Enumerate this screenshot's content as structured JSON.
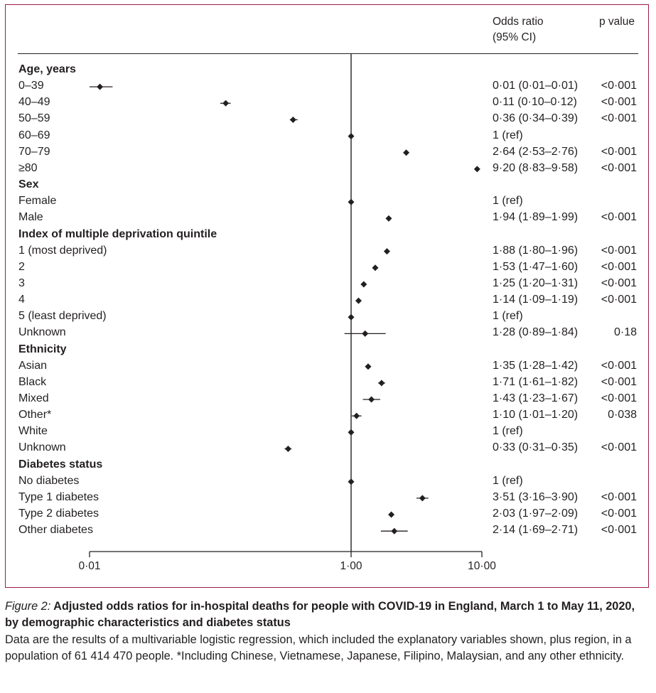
{
  "colors": {
    "frame": "#9b1c46",
    "ink": "#231f20",
    "background": "#ffffff"
  },
  "columns": {
    "odds_ratio_line1": "Odds ratio",
    "odds_ratio_line2": "(95% CI)",
    "p_value": "p value"
  },
  "axis_ticks": [
    {
      "value": 0.01,
      "label": "0·01"
    },
    {
      "value": 1,
      "label": "1·00"
    },
    {
      "value": 10,
      "label": "10·00"
    }
  ],
  "rows": [
    {
      "label": "Age, years",
      "heading": true
    },
    {
      "label": "0–39",
      "or": 0.012,
      "lo": 0.01,
      "hi": 0.015,
      "or_text": "0·01 (0·01–0·01)",
      "p": "<0·001"
    },
    {
      "label": "40–49",
      "or": 0.11,
      "lo": 0.1,
      "hi": 0.12,
      "or_text": "0·11 (0·10–0·12)",
      "p": "<0·001"
    },
    {
      "label": "50–59",
      "or": 0.36,
      "lo": 0.34,
      "hi": 0.39,
      "or_text": "0·36 (0·34–0·39)",
      "p": "<0·001"
    },
    {
      "label": "60–69",
      "or": 1,
      "ref": true,
      "or_text": "1 (ref)",
      "p": ""
    },
    {
      "label": "70–79",
      "or": 2.64,
      "lo": 2.53,
      "hi": 2.76,
      "or_text": "2·64 (2·53–2·76)",
      "p": "<0·001"
    },
    {
      "label": "≥80",
      "or": 9.2,
      "lo": 8.83,
      "hi": 9.58,
      "or_text": "9·20 (8·83–9·58)",
      "p": "<0·001"
    },
    {
      "label": "Sex",
      "heading": true
    },
    {
      "label": "Female",
      "or": 1,
      "ref": true,
      "or_text": "1 (ref)",
      "p": ""
    },
    {
      "label": "Male",
      "or": 1.94,
      "lo": 1.89,
      "hi": 1.99,
      "or_text": "1·94 (1·89–1·99)",
      "p": "<0·001"
    },
    {
      "label": "Index of multiple deprivation quintile",
      "heading": true
    },
    {
      "label": "1 (most deprived)",
      "or": 1.88,
      "lo": 1.8,
      "hi": 1.96,
      "or_text": "1·88 (1·80–1·96)",
      "p": "<0·001"
    },
    {
      "label": "2",
      "or": 1.53,
      "lo": 1.47,
      "hi": 1.6,
      "or_text": "1·53 (1·47–1·60)",
      "p": "<0·001"
    },
    {
      "label": "3",
      "or": 1.25,
      "lo": 1.2,
      "hi": 1.31,
      "or_text": "1·25 (1·20–1·31)",
      "p": "<0·001"
    },
    {
      "label": "4",
      "or": 1.14,
      "lo": 1.09,
      "hi": 1.19,
      "or_text": "1·14 (1·09–1·19)",
      "p": "<0·001"
    },
    {
      "label": "5 (least deprived)",
      "or": 1,
      "ref": true,
      "or_text": "1 (ref)",
      "p": ""
    },
    {
      "label": "Unknown",
      "or": 1.28,
      "lo": 0.89,
      "hi": 1.84,
      "or_text": "1·28 (0·89–1·84)",
      "p": "0·18"
    },
    {
      "label": "Ethnicity",
      "heading": true
    },
    {
      "label": "Asian",
      "or": 1.35,
      "lo": 1.28,
      "hi": 1.42,
      "or_text": "1·35 (1·28–1·42)",
      "p": "<0·001"
    },
    {
      "label": "Black",
      "or": 1.71,
      "lo": 1.61,
      "hi": 1.82,
      "or_text": "1·71 (1·61–1·82)",
      "p": "<0·001"
    },
    {
      "label": "Mixed",
      "or": 1.43,
      "lo": 1.23,
      "hi": 1.67,
      "or_text": "1·43 (1·23–1·67)",
      "p": "<0·001"
    },
    {
      "label": "Other*",
      "or": 1.1,
      "lo": 1.01,
      "hi": 1.2,
      "or_text": "1·10 (1·01–1·20)",
      "p": "0·038"
    },
    {
      "label": "White",
      "or": 1,
      "ref": true,
      "or_text": "1 (ref)",
      "p": ""
    },
    {
      "label": "Unknown",
      "or": 0.33,
      "lo": 0.31,
      "hi": 0.35,
      "or_text": "0·33 (0·31–0·35)",
      "p": "<0·001"
    },
    {
      "label": "Diabetes status",
      "heading": true
    },
    {
      "label": "No diabetes",
      "or": 1,
      "ref": true,
      "or_text": "1 (ref)",
      "p": ""
    },
    {
      "label": "Type 1 diabetes",
      "or": 3.51,
      "lo": 3.16,
      "hi": 3.9,
      "or_text": "3·51 (3·16–3·90)",
      "p": "<0·001"
    },
    {
      "label": "Type 2 diabetes",
      "or": 2.03,
      "lo": 1.97,
      "hi": 2.09,
      "or_text": "2·03 (1·97–2·09)",
      "p": "<0·001"
    },
    {
      "label": "Other diabetes",
      "or": 2.14,
      "lo": 1.69,
      "hi": 2.71,
      "or_text": "2·14 (1·69–2·71)",
      "p": "<0·001"
    }
  ],
  "caption": {
    "figure_label": "Figure 2:",
    "title": " Adjusted odds ratios for in-hospital deaths for people with COVID-19 in England, March 1 to May 11, 2020, by demographic characteristics and diabetes status",
    "body": "Data are the results of a multivariable logistic regression, which included the explanatory variables shown, plus region, in a population of 61 414 470 people. *Including Chinese, Vietnamese, Japanese, Filipino, Malaysian, and any other ethnicity."
  },
  "chart_data": {
    "type": "scatter",
    "subtype": "forest-plot",
    "title": "Adjusted odds ratios for in-hospital deaths for people with COVID-19 in England, March 1 to May 11, 2020, by demographic characteristics and diabetes status",
    "xlabel": "",
    "ylabel": "",
    "xscale": "log",
    "xlim": [
      0.01,
      10
    ],
    "xticks": [
      0.01,
      1,
      10
    ],
    "xtick_labels": [
      "0·01",
      "1·00",
      "10·00"
    ],
    "reference_line": 1,
    "grid": false,
    "legend": "none",
    "series": [
      {
        "name": "Odds ratio (95% CI)",
        "categories": [
          "0–39",
          "40–49",
          "50–59",
          "60–69",
          "70–79",
          "≥80",
          "Female",
          "Male",
          "IMD 1 (most deprived)",
          "IMD 2",
          "IMD 3",
          "IMD 4",
          "IMD 5 (least deprived)",
          "IMD Unknown",
          "Asian",
          "Black",
          "Mixed",
          "Other*",
          "White",
          "Ethnicity Unknown",
          "No diabetes",
          "Type 1 diabetes",
          "Type 2 diabetes",
          "Other diabetes"
        ],
        "values": [
          0.01,
          0.11,
          0.36,
          1,
          2.64,
          9.2,
          1,
          1.94,
          1.88,
          1.53,
          1.25,
          1.14,
          1,
          1.28,
          1.35,
          1.71,
          1.43,
          1.1,
          1,
          0.33,
          1,
          3.51,
          2.03,
          2.14
        ],
        "ci_low": [
          0.01,
          0.1,
          0.34,
          null,
          2.53,
          8.83,
          null,
          1.89,
          1.8,
          1.47,
          1.2,
          1.09,
          null,
          0.89,
          1.28,
          1.61,
          1.23,
          1.01,
          null,
          0.31,
          null,
          3.16,
          1.97,
          1.69
        ],
        "ci_high": [
          0.01,
          0.12,
          0.39,
          null,
          2.76,
          9.58,
          null,
          1.99,
          1.96,
          1.6,
          1.31,
          1.19,
          null,
          1.84,
          1.42,
          1.82,
          1.67,
          1.2,
          null,
          0.35,
          null,
          3.9,
          2.09,
          2.71
        ],
        "p_values": [
          "<0·001",
          "<0·001",
          "<0·001",
          "",
          "<0·001",
          "<0·001",
          "",
          "<0·001",
          "<0·001",
          "<0·001",
          "<0·001",
          "<0·001",
          "",
          "0·18",
          "<0·001",
          "<0·001",
          "<0·001",
          "0·038",
          "",
          "<0·001",
          "",
          "<0·001",
          "<0·001",
          "<0·001"
        ]
      }
    ]
  }
}
